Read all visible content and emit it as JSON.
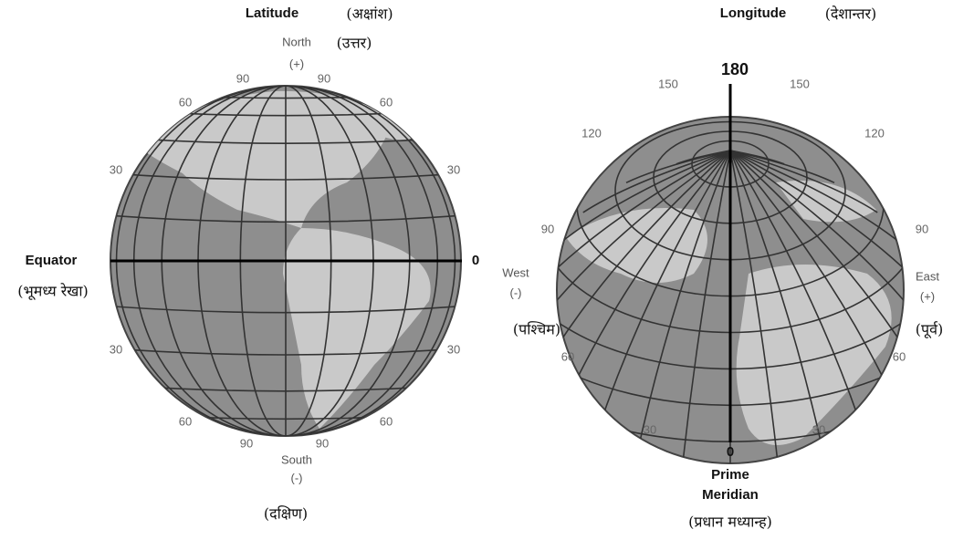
{
  "latitude": {
    "title": "Latitude",
    "title_hi": "(अक्षांश)",
    "north": "North",
    "north_hi": "(उत्तर)",
    "north_sign": "(+)",
    "equator": "Equator",
    "equator_hi": "(भूमध्य रेखा)",
    "equator_value": "0",
    "south": "South",
    "south_sign": "(-)",
    "south_hi": "(दक्षिण)",
    "degree_labels": [
      "90",
      "90",
      "60",
      "60",
      "30",
      "30",
      "30",
      "30",
      "60",
      "60",
      "90",
      "90"
    ]
  },
  "longitude": {
    "title": "Longitude",
    "title_hi": "(देशान्तर)",
    "top_value": "180",
    "west": "West",
    "west_sign": "(-)",
    "west_hi": "(पश्चिम)",
    "east": "East",
    "east_sign": "(+)",
    "east_hi": "(पूर्व)",
    "prime_value": "0",
    "prime": "Prime",
    "meridian": "Meridian",
    "prime_hi": "(प्रधान मध्यान्ह)",
    "degree_labels": [
      "150",
      "150",
      "120",
      "120",
      "90",
      "90",
      "60",
      "60",
      "30",
      "30"
    ]
  }
}
